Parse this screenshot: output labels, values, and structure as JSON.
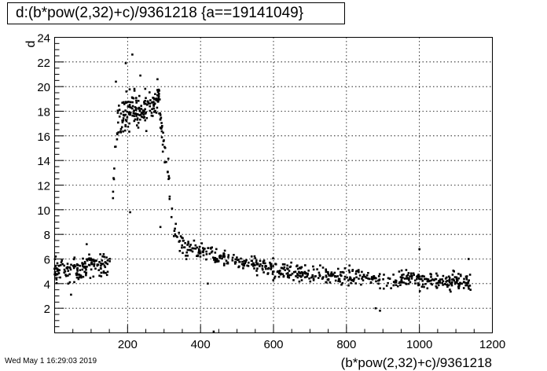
{
  "chart_data": {
    "type": "scatter",
    "title": "d:(b*pow(2,32)+c)/9361218 {a==19141049}",
    "xlabel": "(b*pow(2,32)+c)/9361218",
    "ylabel": "d",
    "xlim": [
      0,
      1200
    ],
    "ylim": [
      0,
      24
    ],
    "x_ticks": [
      200,
      400,
      600,
      800,
      1000,
      1200
    ],
    "y_ticks": [
      2,
      4,
      6,
      8,
      10,
      12,
      14,
      16,
      18,
      20,
      22,
      24
    ],
    "grid": true,
    "marker_color": "#000000",
    "profile": [
      [
        5,
        5.2,
        0.7
      ],
      [
        30,
        5.0,
        0.7
      ],
      [
        60,
        5.1,
        0.7
      ],
      [
        90,
        5.3,
        0.7
      ],
      [
        120,
        5.5,
        0.7
      ],
      [
        150,
        5.3,
        0.7
      ],
      [
        168,
        16.5,
        1.3
      ],
      [
        185,
        17.5,
        1.3
      ],
      [
        210,
        18.2,
        1.2
      ],
      [
        240,
        18.0,
        1.1
      ],
      [
        270,
        18.5,
        1.0
      ],
      [
        285,
        19.0,
        0.9
      ],
      [
        295,
        16.0,
        1.0
      ],
      [
        305,
        14.5,
        1.2
      ],
      [
        315,
        12.0,
        1.3
      ],
      [
        325,
        9.5,
        1.0
      ],
      [
        340,
        7.3,
        0.8
      ],
      [
        370,
        6.8,
        0.6
      ],
      [
        420,
        6.4,
        0.6
      ],
      [
        500,
        5.9,
        0.6
      ],
      [
        600,
        5.2,
        0.6
      ],
      [
        700,
        4.8,
        0.6
      ],
      [
        800,
        4.5,
        0.6
      ],
      [
        900,
        4.3,
        0.6
      ],
      [
        1000,
        4.3,
        0.6
      ],
      [
        1100,
        4.2,
        0.6
      ],
      [
        1135,
        4.2,
        0.6
      ]
    ],
    "segments": [
      {
        "x_from": 0,
        "x_to": 152,
        "count": 160
      },
      {
        "x_from": 160,
        "x_to": 300,
        "count": 200
      },
      {
        "x_from": 300,
        "x_to": 1140,
        "count": 600
      }
    ],
    "outliers": [
      {
        "x": 45,
        "y": 3.1
      },
      {
        "x": 88,
        "y": 7.2
      },
      {
        "x": 168,
        "y": 20.4
      },
      {
        "x": 195,
        "y": 21.9
      },
      {
        "x": 213,
        "y": 22.6
      },
      {
        "x": 207,
        "y": 9.8
      },
      {
        "x": 235,
        "y": 20.9
      },
      {
        "x": 282,
        "y": 20.6
      },
      {
        "x": 290,
        "y": 8.6
      },
      {
        "x": 420,
        "y": 4.0
      },
      {
        "x": 436,
        "y": 0.1
      },
      {
        "x": 880,
        "y": 2.0
      },
      {
        "x": 892,
        "y": 1.8
      },
      {
        "x": 1000,
        "y": 6.8
      },
      {
        "x": 1135,
        "y": 6.0
      },
      {
        "x": 1140,
        "y": 3.5
      }
    ]
  },
  "footer": {
    "timestamp": "Wed May  1 16:29:03 2019"
  }
}
